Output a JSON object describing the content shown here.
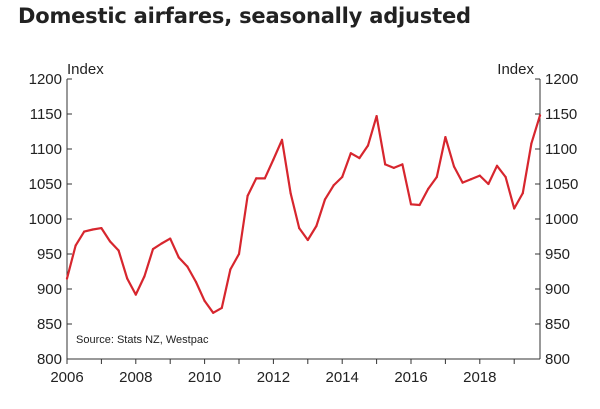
{
  "chart_data": {
    "type": "line",
    "title": "Domestic airfares, seasonally adjusted",
    "ylabel_left": "Index",
    "ylabel_right": "Index",
    "source": "Source: Stats NZ, Westpac",
    "xlim": [
      2006,
      2019.75
    ],
    "ylim": [
      800,
      1200
    ],
    "y_ticks": [
      "800",
      "850",
      "900",
      "950",
      "1000",
      "1050",
      "1100",
      "1150",
      "1200"
    ],
    "x_ticks": [
      "2006",
      "2008",
      "2010",
      "2012",
      "2014",
      "2016",
      "2018"
    ],
    "line_color": "#d7262e",
    "series": [
      {
        "name": "Domestic airfares",
        "x": [
          2006.0,
          2006.25,
          2006.5,
          2006.75,
          2007.0,
          2007.25,
          2007.5,
          2007.75,
          2008.0,
          2008.25,
          2008.5,
          2008.75,
          2009.0,
          2009.25,
          2009.5,
          2009.75,
          2010.0,
          2010.25,
          2010.5,
          2010.75,
          2011.0,
          2011.25,
          2011.5,
          2011.75,
          2012.0,
          2012.25,
          2012.5,
          2012.75,
          2013.0,
          2013.25,
          2013.5,
          2013.75,
          2014.0,
          2014.25,
          2014.5,
          2014.75,
          2015.0,
          2015.25,
          2015.5,
          2015.75,
          2016.0,
          2016.25,
          2016.5,
          2016.75,
          2017.0,
          2017.25,
          2017.5,
          2017.75,
          2018.0,
          2018.25,
          2018.5,
          2018.75,
          2019.0,
          2019.25,
          2019.5,
          2019.75
        ],
        "values": [
          915,
          962,
          982,
          985,
          987,
          968,
          955,
          915,
          892,
          918,
          957,
          965,
          972,
          945,
          932,
          910,
          883,
          866,
          873,
          928,
          950,
          1033,
          1058,
          1058,
          1085,
          1113,
          1037,
          987,
          970,
          990,
          1028,
          1048,
          1060,
          1094,
          1087,
          1105,
          1147,
          1078,
          1073,
          1078,
          1021,
          1020,
          1043,
          1060,
          1117,
          1075,
          1052,
          1057,
          1062,
          1050,
          1076,
          1060,
          1015,
          1037,
          1108,
          1148
        ]
      }
    ]
  }
}
